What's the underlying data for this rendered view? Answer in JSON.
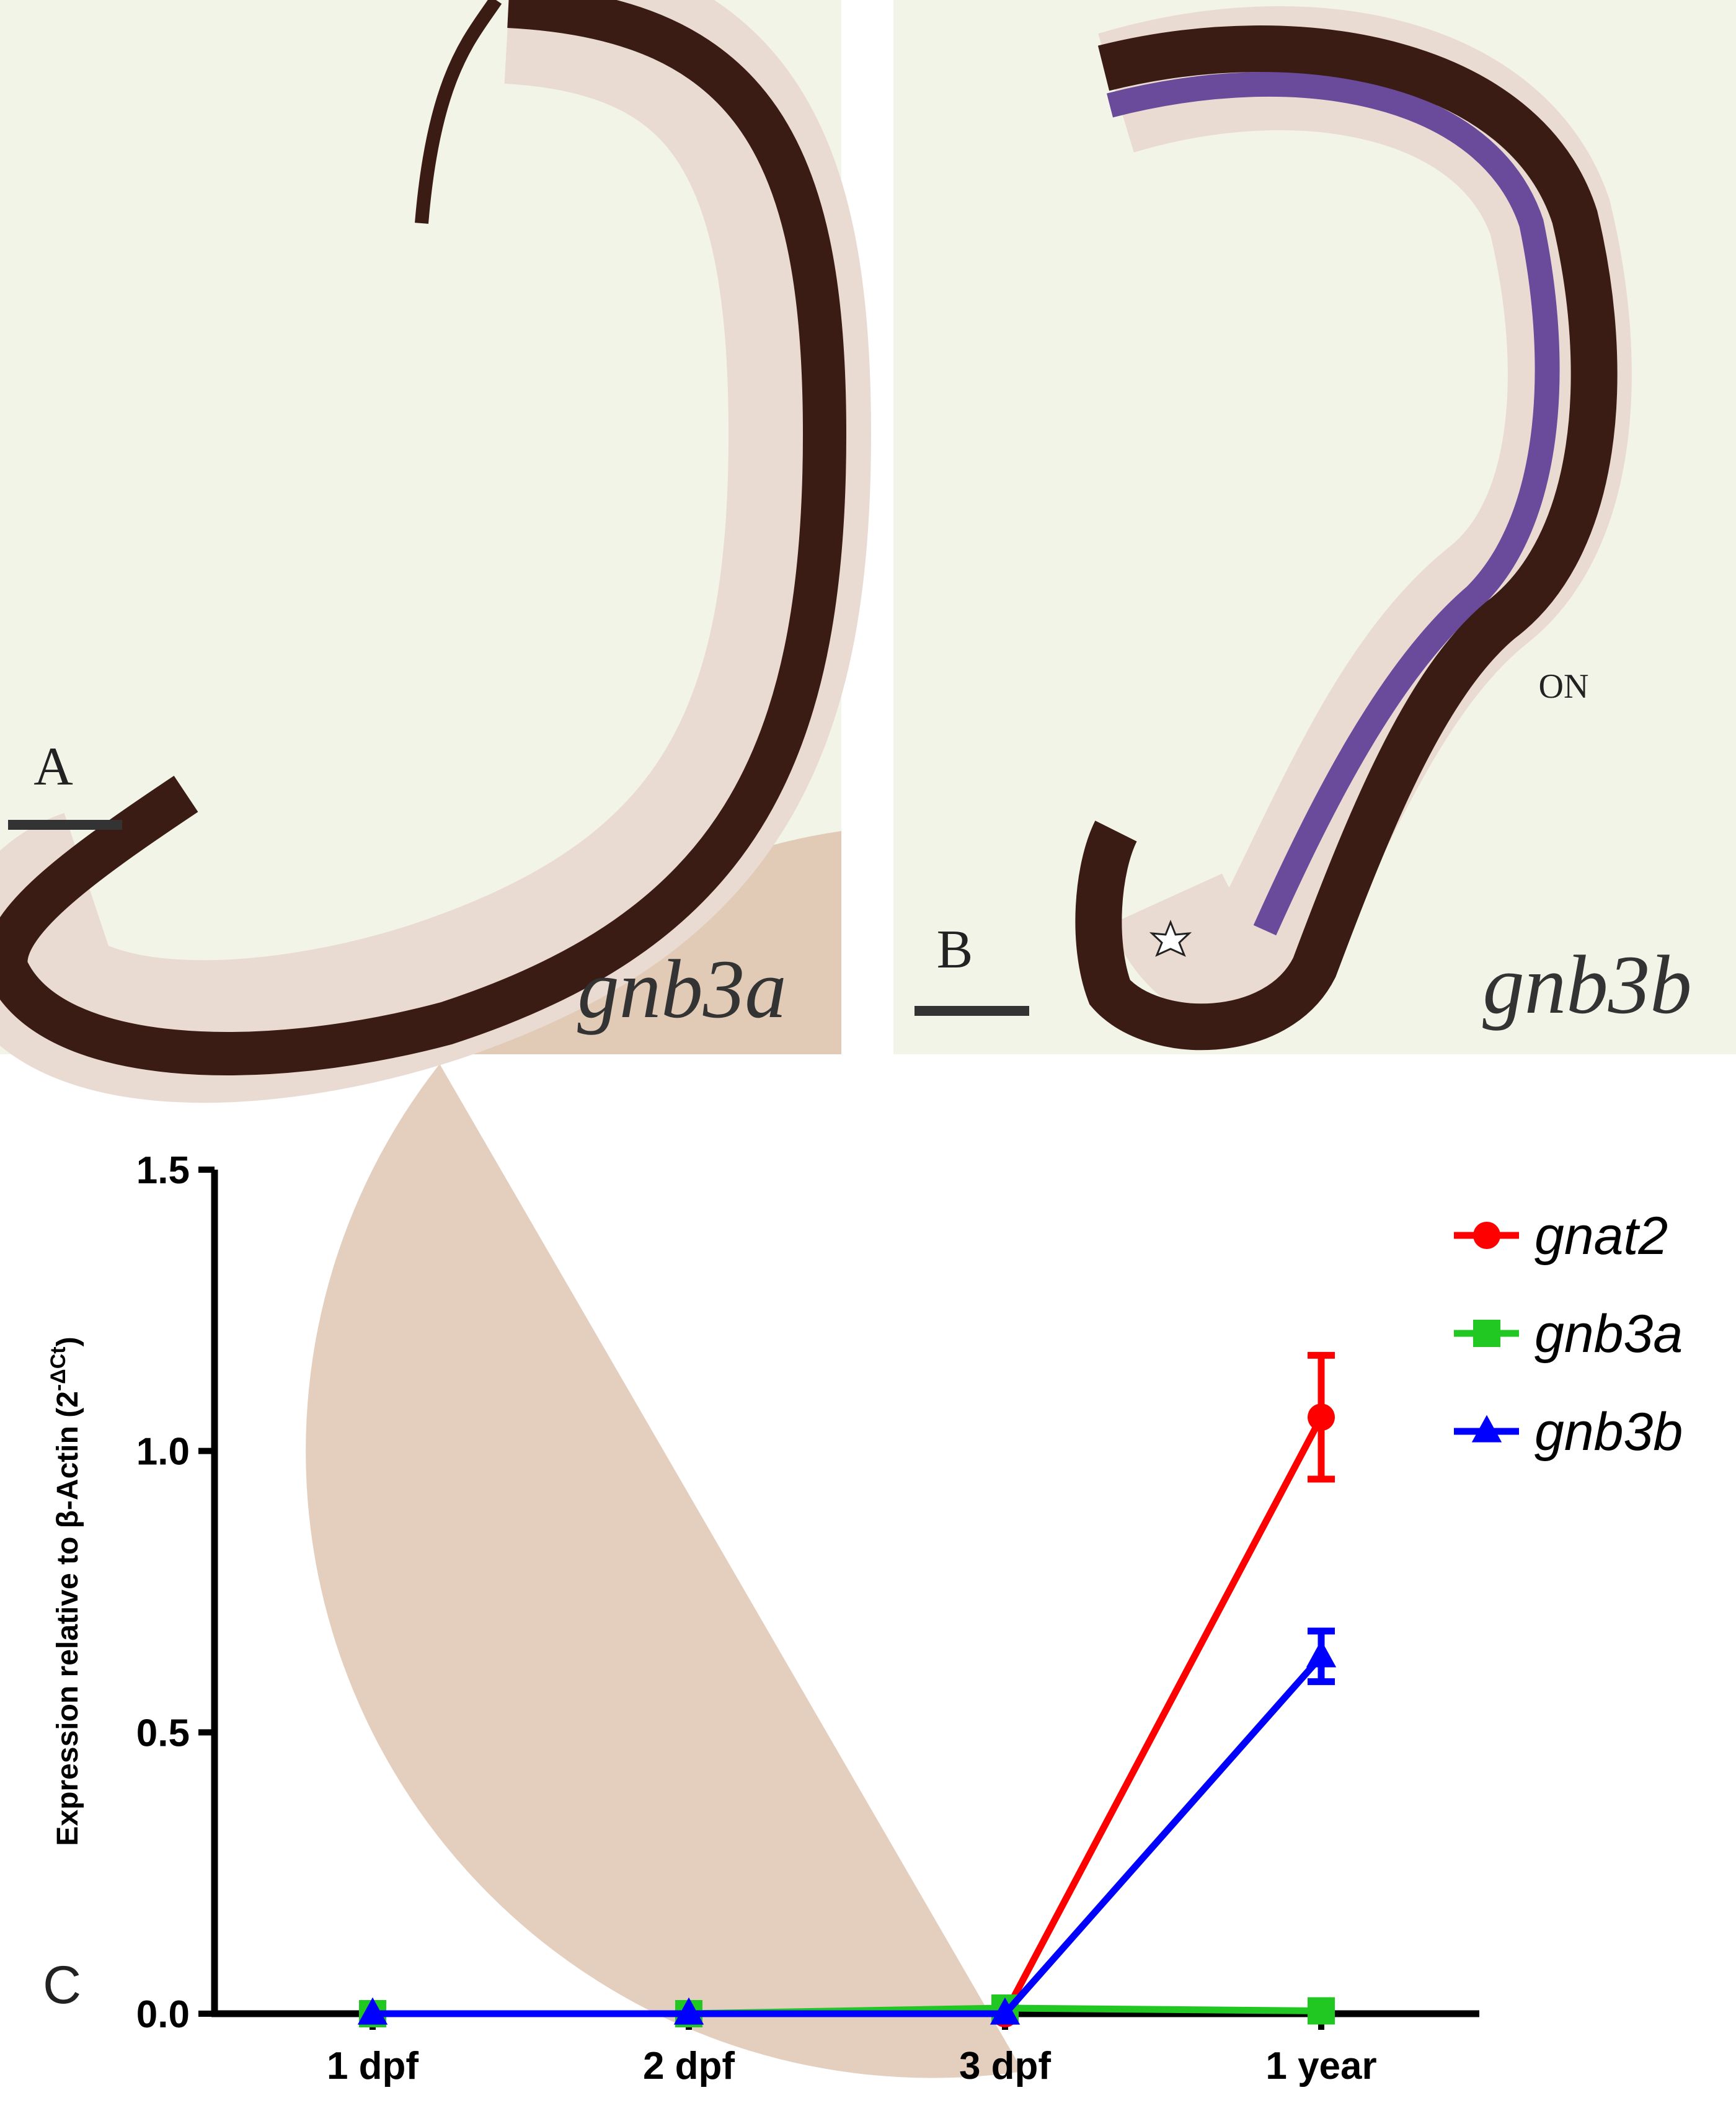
{
  "panels": [
    {
      "label": "A",
      "gene": "gnb3a"
    },
    {
      "label": "B",
      "gene": "gnb3b",
      "annotation": "ON"
    }
  ],
  "chart_data": {
    "type": "line",
    "panel_label": "C",
    "y_label": [
      "Expression relative to β-Actin (2",
      "-ΔCt",
      ")"
    ],
    "categories": [
      "1 dpf",
      "2 dpf",
      "3 dpf",
      "1 year"
    ],
    "ylim": [
      0,
      1.5
    ],
    "yticks": [
      {
        "value": 0,
        "label": "0.0"
      },
      0.5,
      {
        "value": 1,
        "label": "1.0"
      },
      1.5
    ],
    "series": [
      {
        "name": "gnat2",
        "color": "#ff0000",
        "marker": "circle",
        "values": [
          0,
          0,
          0,
          1.06
        ],
        "errors": [
          null,
          null,
          null,
          0.11
        ]
      },
      {
        "name": "gnb3a",
        "color": "#22c822",
        "marker": "square",
        "values": [
          0,
          0,
          0.01,
          0.005
        ],
        "errors": [
          null,
          null,
          null,
          null
        ]
      },
      {
        "name": "gnb3b",
        "color": "#0000ff",
        "marker": "triangle",
        "values": [
          0,
          0,
          0,
          0.635
        ],
        "errors": [
          null,
          null,
          null,
          0.045
        ]
      }
    ]
  }
}
